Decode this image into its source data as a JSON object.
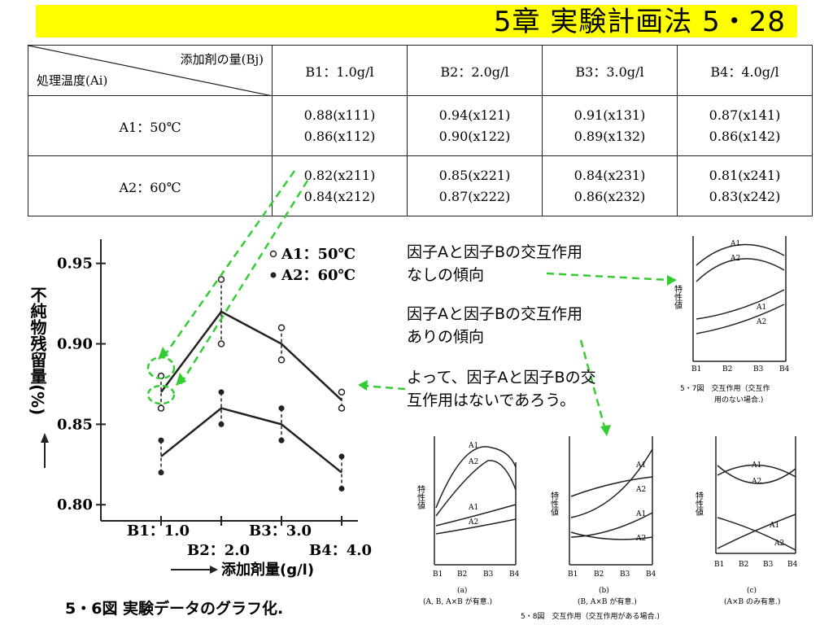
{
  "title": "5章 実験計画法 5・28",
  "table": {
    "corner_top": "添加剤の量(Bj)",
    "corner_bottom": "処理温度(Ai)",
    "columns": [
      "B1：1.0g/l",
      "B2：2.0g/l",
      "B3：3.0g/l",
      "B4：4.0g/l"
    ],
    "rows": [
      {
        "label": "A1：50℃",
        "cells": [
          [
            "0.88(x111)",
            "0.86(x112)"
          ],
          [
            "0.94(x121)",
            "0.90(x122)"
          ],
          [
            "0.91(x131)",
            "0.89(x132)"
          ],
          [
            "0.87(x141)",
            "0.86(x142)"
          ]
        ]
      },
      {
        "label": "A2：60℃",
        "cells": [
          [
            "0.82(x211)",
            "0.84(x212)"
          ],
          [
            "0.85(x221)",
            "0.87(x222)"
          ],
          [
            "0.84(x231)",
            "0.86(x232)"
          ],
          [
            "0.81(x241)",
            "0.83(x242)"
          ]
        ]
      }
    ]
  },
  "main_chart": {
    "caption": "5・6図 実験データのグラフ化.",
    "ylabel": "不純物残留量(%)",
    "xlabel": "添加剤量(g/l)",
    "y_ticks": [
      "0.95",
      "0.90",
      "0.85",
      "0.80"
    ],
    "x_ticks_upper": [
      "B1：1.0",
      "B3：3.0"
    ],
    "x_ticks_lower": [
      "B2：2.0",
      "B4：4.0"
    ],
    "legend": [
      "A1：50℃",
      "A2：60℃"
    ],
    "ylim": [
      0.79,
      0.965
    ],
    "series": [
      {
        "name": "A1：50℃",
        "marker": "open",
        "points": [
          [
            0.88,
            0.86
          ],
          [
            0.94,
            0.9
          ],
          [
            0.91,
            0.89
          ],
          [
            0.87,
            0.86
          ]
        ],
        "means": [
          0.87,
          0.92,
          0.9,
          0.865
        ]
      },
      {
        "name": "A2：60℃",
        "marker": "filled",
        "points": [
          [
            0.82,
            0.84
          ],
          [
            0.85,
            0.87
          ],
          [
            0.84,
            0.86
          ],
          [
            0.81,
            0.83
          ]
        ],
        "means": [
          0.83,
          0.86,
          0.85,
          0.82
        ]
      }
    ]
  },
  "annotations": {
    "no_interaction": [
      "因子Aと因子Bの交互作用",
      "なしの傾向"
    ],
    "interaction": [
      "因子Aと因子Bの交互作用",
      "ありの傾向"
    ],
    "conclusion": [
      "よって、因子Aと因子Bの交",
      "互作用はないであろう。"
    ]
  },
  "fig57": {
    "ylabel": "特性値",
    "x_ticks": [
      "B1",
      "B2",
      "B3",
      "B4"
    ],
    "lines": [
      "A1",
      "A2",
      "A1",
      "A2"
    ],
    "caption": [
      "5・7図　交互作用（交互作",
      "用のない場合.)"
    ]
  },
  "fig58": {
    "ylabel": "特性値",
    "x_ticks": [
      "B1",
      "B2",
      "B3",
      "B4"
    ],
    "line_labels": [
      "A1",
      "A2"
    ],
    "panels": [
      {
        "label": "(a)",
        "note": "(A, B, A×B が有意.)"
      },
      {
        "label": "(b)",
        "note": "(B, A×B が有意.)"
      },
      {
        "label": "(c)",
        "note": "(A×B のみ有意.)"
      }
    ],
    "caption": "5・8図　交互作用（交互作用がある場合.)"
  },
  "colors": {
    "title_bg": "#ffff00",
    "arrow": "#33cc33",
    "ink": "#222222"
  }
}
